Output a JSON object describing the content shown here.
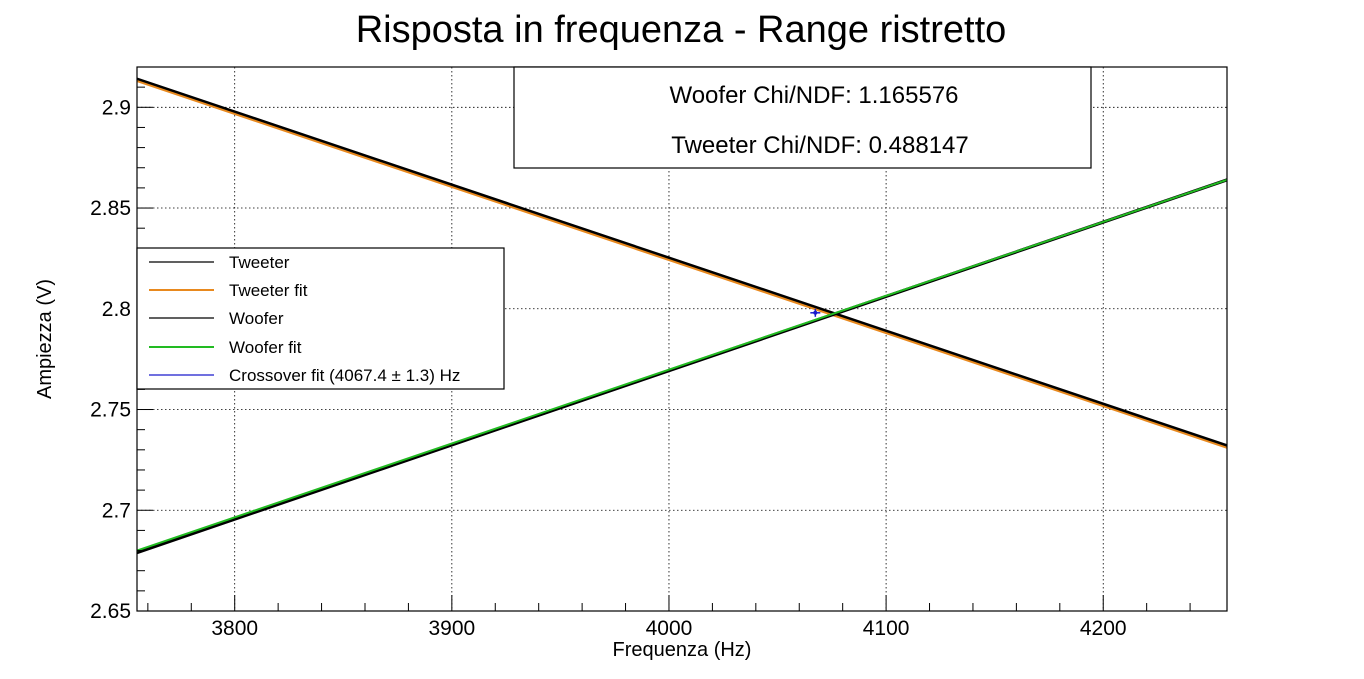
{
  "chart_data": {
    "type": "line",
    "title": "Risposta in frequenza - Range ristretto",
    "xlabel": "Frequenza (Hz)",
    "ylabel": "Ampiezza (V)",
    "xlim": [
      3755,
      4257
    ],
    "ylim": [
      2.65,
      2.92
    ],
    "x_ticks": [
      3800,
      3900,
      4000,
      4100,
      4200
    ],
    "x_tick_labels": [
      "3800",
      "3900",
      "4000",
      "4100",
      "4200"
    ],
    "y_ticks": [
      2.65,
      2.7,
      2.75,
      2.8,
      2.85,
      2.9
    ],
    "y_tick_labels": [
      "2.65",
      "2.7",
      "2.75",
      "2.8",
      "2.85",
      "2.9"
    ],
    "grid": true,
    "legend_position": "middle-left",
    "series": [
      {
        "name": "Tweeter",
        "color": "#000000",
        "role": "data",
        "x": [
          3755,
          4257
        ],
        "values": [
          2.914,
          2.732
        ]
      },
      {
        "name": "Tweeter fit",
        "color": "#e8891e",
        "role": "fit",
        "x": [
          3755,
          4257
        ],
        "values": [
          2.913,
          2.731
        ]
      },
      {
        "name": "Woofer",
        "color": "#000000",
        "role": "data",
        "x": [
          3755,
          4257
        ],
        "values": [
          2.679,
          2.864
        ]
      },
      {
        "name": "Woofer fit",
        "color": "#22bb22",
        "role": "fit",
        "x": [
          3755,
          4257
        ],
        "values": [
          2.68,
          2.864
        ]
      },
      {
        "name": "Crossover fit (4067.4 ± 1.3) Hz",
        "color": "#1a1acc",
        "role": "marker",
        "x": [
          4067.4
        ],
        "values": [
          2.798
        ]
      }
    ],
    "stats_box": {
      "lines": [
        "Woofer Chi/NDF: 1.165576",
        "Tweeter Chi/NDF: 0.488147"
      ],
      "position": "top-center"
    }
  }
}
